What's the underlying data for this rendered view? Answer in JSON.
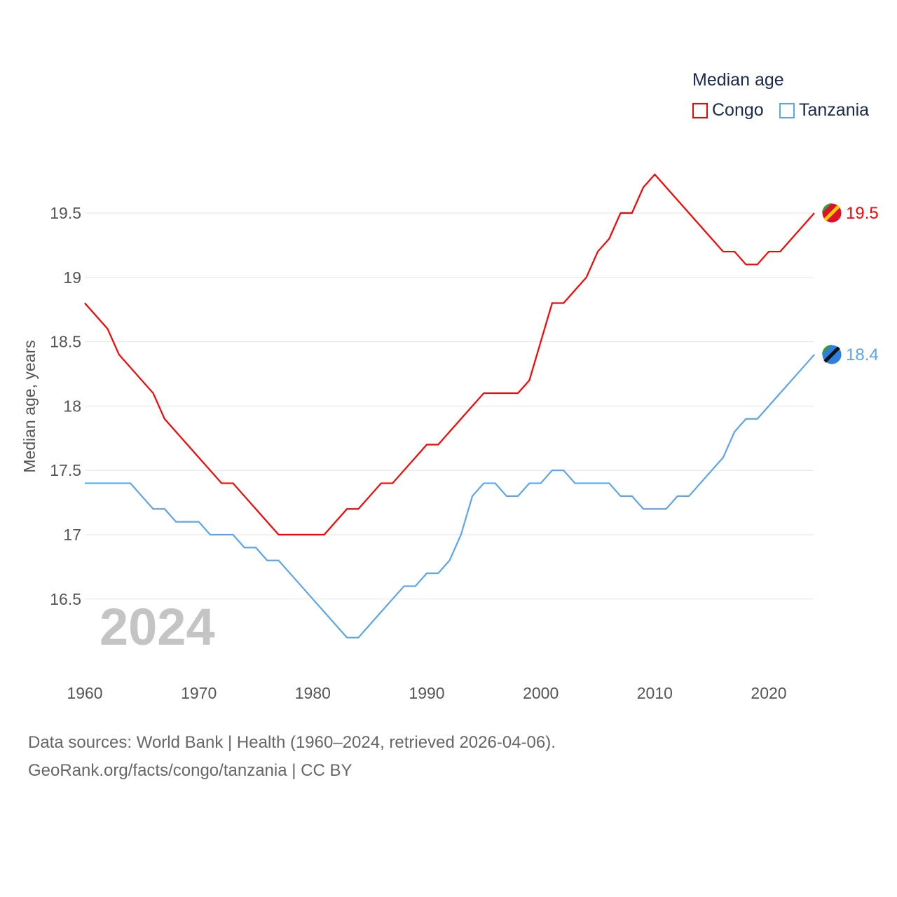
{
  "chart_data": {
    "type": "line",
    "title": "Median age",
    "ylabel": "Median age, years",
    "xlabel": "",
    "xlim": [
      1960,
      2024
    ],
    "ylim": [
      16.0,
      19.8
    ],
    "x_ticks": [
      "1960",
      "1970",
      "1980",
      "1990",
      "2000",
      "2010",
      "2020"
    ],
    "y_ticks": [
      "16.5",
      "17",
      "17.5",
      "18",
      "18.5",
      "19",
      "19.5"
    ],
    "grid": true,
    "legend_placement": "top-right",
    "year_watermark": "2024",
    "x": [
      1960,
      1961,
      1962,
      1963,
      1964,
      1965,
      1966,
      1967,
      1968,
      1969,
      1970,
      1971,
      1972,
      1973,
      1974,
      1975,
      1976,
      1977,
      1978,
      1979,
      1980,
      1981,
      1982,
      1983,
      1984,
      1985,
      1986,
      1987,
      1988,
      1989,
      1990,
      1991,
      1992,
      1993,
      1994,
      1995,
      1996,
      1997,
      1998,
      1999,
      2000,
      2001,
      2002,
      2003,
      2004,
      2005,
      2006,
      2007,
      2008,
      2009,
      2010,
      2011,
      2012,
      2013,
      2014,
      2015,
      2016,
      2017,
      2018,
      2019,
      2020,
      2021,
      2022,
      2023,
      2024
    ],
    "series": [
      {
        "name": "Congo",
        "color": "#ff0000",
        "end_label": "19.5",
        "values": [
          18.8,
          18.7,
          18.6,
          18.4,
          18.3,
          18.2,
          18.1,
          17.9,
          17.8,
          17.7,
          17.6,
          17.5,
          17.4,
          17.4,
          17.3,
          17.2,
          17.1,
          17.0,
          17.0,
          17.0,
          17.0,
          17.0,
          17.1,
          17.2,
          17.2,
          17.3,
          17.4,
          17.4,
          17.5,
          17.6,
          17.7,
          17.7,
          17.8,
          17.9,
          18.0,
          18.1,
          18.1,
          18.1,
          18.1,
          18.2,
          18.5,
          18.8,
          18.8,
          18.9,
          19.0,
          19.2,
          19.3,
          19.5,
          19.5,
          19.7,
          19.8,
          19.7,
          19.6,
          19.5,
          19.4,
          19.3,
          19.2,
          19.2,
          19.1,
          19.1,
          19.2,
          19.2,
          19.3,
          19.4,
          19.5
        ]
      },
      {
        "name": "Tanzania",
        "color": "#5aa5ee",
        "end_label": "18.4",
        "values": [
          17.4,
          17.4,
          17.4,
          17.4,
          17.4,
          17.3,
          17.2,
          17.2,
          17.1,
          17.1,
          17.1,
          17.0,
          17.0,
          17.0,
          16.9,
          16.9,
          16.8,
          16.8,
          16.7,
          16.6,
          16.5,
          16.4,
          16.3,
          16.2,
          16.2,
          16.3,
          16.4,
          16.5,
          16.6,
          16.6,
          16.7,
          16.7,
          16.8,
          17.0,
          17.3,
          17.4,
          17.4,
          17.3,
          17.3,
          17.4,
          17.4,
          17.5,
          17.5,
          17.4,
          17.4,
          17.4,
          17.4,
          17.3,
          17.3,
          17.2,
          17.2,
          17.2,
          17.3,
          17.3,
          17.4,
          17.5,
          17.6,
          17.8,
          17.9,
          17.9,
          18.0,
          18.1,
          18.2,
          18.3,
          18.4
        ]
      }
    ]
  },
  "footer": {
    "line1": "Data sources: World Bank | Health (1960–2024, retrieved 2026-04-06).",
    "line2": "GeoRank.org/facts/congo/tanzania | CC BY"
  }
}
